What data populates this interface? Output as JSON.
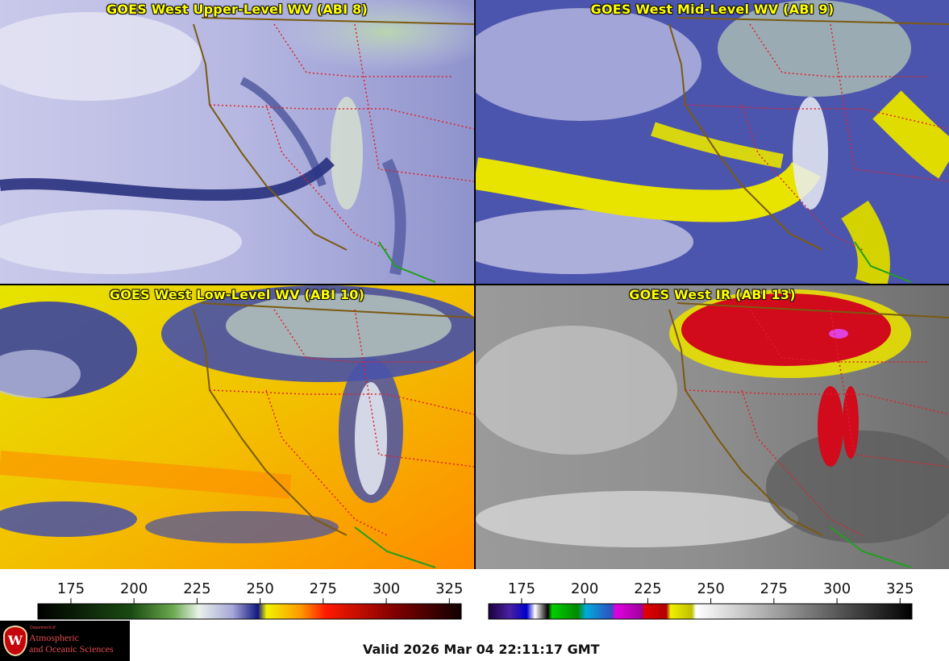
{
  "panels": [
    {
      "title": "GOES West Upper-Level WV (ABI 8)",
      "palette": "wv-upper"
    },
    {
      "title": "GOES West Mid-Level WV (ABI 9)",
      "palette": "wv-mid"
    },
    {
      "title": "GOES West Low-Level WV (ABI 10)",
      "palette": "wv-low"
    },
    {
      "title": "GOES West IR (ABI 13)",
      "palette": "ir"
    }
  ],
  "colorbars": {
    "wv": {
      "ticks": [
        "175",
        "200",
        "225",
        "250",
        "275",
        "300",
        "325"
      ]
    },
    "ir": {
      "ticks": [
        "175",
        "200",
        "225",
        "250",
        "275",
        "300",
        "325"
      ]
    }
  },
  "colors": {
    "title_text": "#ffff00",
    "state_borders": "#e0202a",
    "coastline": "#7a5a10",
    "mexico_border": "#1fa01f"
  },
  "logo": {
    "dept_line": "Department of",
    "line1": "Atmospheric",
    "line2": "and Oceanic Sciences",
    "seal_letter": "W"
  },
  "footer": {
    "valid_text": "Valid 2026 Mar 04 22:11:17 GMT"
  }
}
